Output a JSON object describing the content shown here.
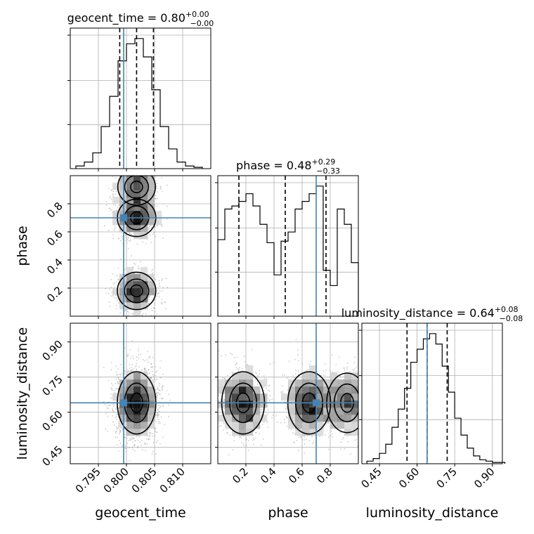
{
  "chart_data": {
    "type": "corner",
    "parameters": [
      "geocent_time",
      "phase",
      "luminosity_distance"
    ],
    "truths": {
      "geocent_time": 0.7995,
      "phase": 0.7,
      "luminosity_distance": 0.64
    },
    "truth_color": "#4682b4",
    "grid": true,
    "diagonal": [
      {
        "name": "geocent_time",
        "title": "geocent_time = 0.80",
        "title_plus": "+0.00",
        "title_minus": "−0.00",
        "xlim": [
          0.79,
          0.815
        ],
        "quantiles": [
          0.7988,
          0.8018,
          0.8048
        ],
        "bins_x": [
          0.791,
          0.7925,
          0.794,
          0.7955,
          0.797,
          0.7985,
          0.8,
          0.8015,
          0.803,
          0.8045,
          0.806,
          0.8075,
          0.809,
          0.8105,
          0.812
        ],
        "counts": [
          2,
          5,
          12,
          32,
          55,
          82,
          95,
          99,
          85,
          60,
          32,
          15,
          5,
          2,
          1
        ]
      },
      {
        "name": "phase",
        "title": "phase = 0.48",
        "title_plus": "+0.29",
        "title_minus": "−0.33",
        "xlim": [
          0.0,
          1.0
        ],
        "quantiles": [
          0.15,
          0.48,
          0.77
        ],
        "bins_x": [
          0.0,
          0.05,
          0.1,
          0.15,
          0.2,
          0.25,
          0.3,
          0.35,
          0.4,
          0.45,
          0.5,
          0.55,
          0.6,
          0.65,
          0.7,
          0.75,
          0.8,
          0.85,
          0.9,
          0.95
        ],
        "counts": [
          50,
          70,
          72,
          75,
          80,
          72,
          60,
          48,
          27,
          49,
          55,
          70,
          75,
          80,
          85,
          30,
          20,
          70,
          60,
          35
        ]
      },
      {
        "name": "luminosity_distance",
        "title": "luminosity_distance = 0.64",
        "title_plus": "+0.08",
        "title_minus": "−0.08",
        "xlim": [
          0.38,
          0.94
        ],
        "quantiles": [
          0.56,
          0.64,
          0.72
        ],
        "bins_x": [
          0.4,
          0.425,
          0.45,
          0.475,
          0.5,
          0.525,
          0.55,
          0.575,
          0.6,
          0.625,
          0.65,
          0.675,
          0.7,
          0.725,
          0.75,
          0.775,
          0.8,
          0.825,
          0.85,
          0.875,
          0.9,
          0.925
        ],
        "counts": [
          2,
          4,
          8,
          15,
          28,
          42,
          58,
          78,
          88,
          96,
          100,
          92,
          75,
          55,
          35,
          22,
          12,
          6,
          3,
          2,
          1,
          1
        ]
      }
    ],
    "pairs": [
      {
        "x": "geocent_time",
        "y": "phase",
        "xlim": [
          0.79,
          0.815
        ],
        "ylim": [
          0.0,
          1.0
        ],
        "x_modes": [
          0.8018
        ],
        "x_sigma": 0.0018,
        "y_modes": [
          0.18,
          0.7,
          0.92
        ],
        "y_sigma": 0.07,
        "y_weights": [
          1.0,
          1.0,
          0.85
        ]
      },
      {
        "x": "geocent_time",
        "y": "luminosity_distance",
        "xlim": [
          0.79,
          0.815
        ],
        "ylim": [
          0.38,
          0.98
        ],
        "x_modes": [
          0.8018
        ],
        "x_sigma": 0.0018,
        "y_modes": [
          0.64
        ],
        "y_sigma": 0.07,
        "y_weights": [
          1.0
        ]
      },
      {
        "x": "phase",
        "y": "luminosity_distance",
        "xlim": [
          0.0,
          1.0
        ],
        "ylim": [
          0.38,
          0.98
        ],
        "x_modes": [
          0.18,
          0.65,
          0.92
        ],
        "x_sigma": 0.08,
        "x_weights": [
          1.0,
          1.0,
          0.7
        ],
        "y_modes": [
          0.64
        ],
        "y_sigma": 0.07
      }
    ],
    "ticks": {
      "geocent_time": {
        "values": [
          0.795,
          0.8,
          0.805,
          0.81
        ],
        "labels": [
          "0.795",
          "0.800",
          "0.805",
          "0.810"
        ]
      },
      "phase": {
        "values": [
          0.2,
          0.4,
          0.6,
          0.8
        ],
        "labels": [
          "0.2",
          "0.4",
          "0.6",
          "0.8"
        ]
      },
      "luminosity_distance": {
        "values": [
          0.45,
          0.6,
          0.75,
          0.9
        ],
        "labels": [
          "0.45",
          "0.60",
          "0.75",
          "0.90"
        ]
      }
    },
    "axis_labels": {
      "x": [
        "geocent_time",
        "phase",
        "luminosity_distance"
      ],
      "y": [
        "phase",
        "luminosity_distance"
      ]
    }
  }
}
